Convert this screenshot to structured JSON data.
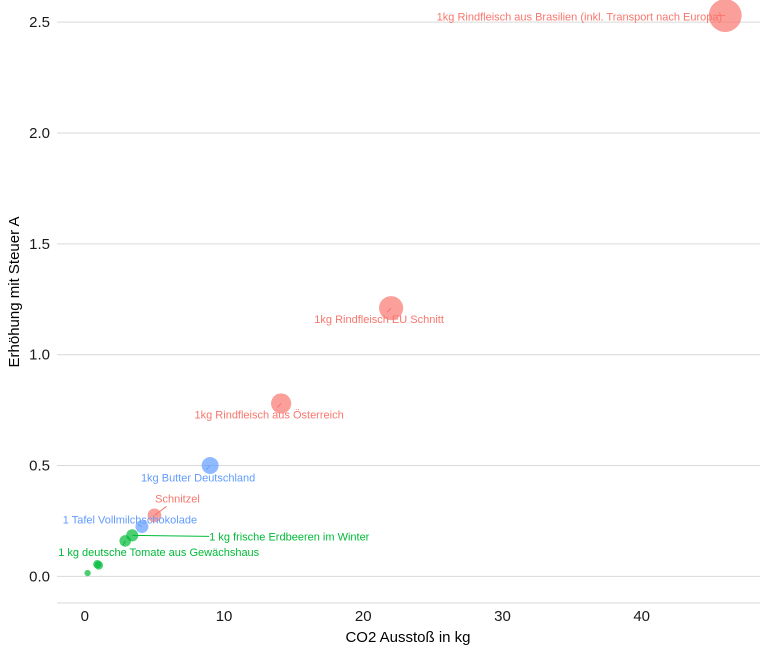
{
  "chart_data": {
    "type": "scatter",
    "xlabel": "CO2 Ausstoß in kg",
    "ylabel": "Erhöhung mit Steuer A",
    "xlim": [
      -2,
      48.5
    ],
    "ylim": [
      -0.12,
      2.6
    ],
    "xticks": [
      "0",
      "10",
      "20",
      "30",
      "40"
    ],
    "yticks": [
      "0.0",
      "0.5",
      "1.0",
      "1.5",
      "2.0",
      "2.5"
    ],
    "grid": "horizontal",
    "colors": {
      "red": "#f8766d",
      "blue": "#619cff",
      "green": "#00ba38",
      "grid": "#d9d9d9"
    },
    "points": [
      {
        "x": 46.0,
        "y": 2.53,
        "size": 46.0,
        "group": "red",
        "label": "1kg Rindfleisch aus Brasilien (inkl. Transport nach Europa)"
      },
      {
        "x": 22.0,
        "y": 1.21,
        "size": 22.0,
        "group": "red",
        "label": "1kg Rindfleisch EU Schnitt"
      },
      {
        "x": 14.1,
        "y": 0.78,
        "size": 14.1,
        "group": "red",
        "label": "1kg Rindfleisch aus Österreich"
      },
      {
        "x": 5.0,
        "y": 0.275,
        "size": 5.0,
        "group": "red",
        "label": "Schnitzel"
      },
      {
        "x": 9.0,
        "y": 0.5,
        "size": 9.0,
        "group": "blue",
        "label": "1kg Butter Deutschland"
      },
      {
        "x": 4.1,
        "y": 0.225,
        "size": 4.1,
        "group": "blue",
        "label": "1 Tafel Vollmilchschokolade"
      },
      {
        "x": 3.4,
        "y": 0.185,
        "size": 3.4,
        "group": "green",
        "label": "1 kg frische Erdbeeren im Winter"
      },
      {
        "x": 2.9,
        "y": 0.16,
        "size": 2.9,
        "group": "green",
        "label": "1 kg deutsche Tomate aus Gewächshaus"
      },
      {
        "x": 0.9,
        "y": 0.055,
        "size": 0.9,
        "group": "green",
        "label": ""
      },
      {
        "x": 1.0,
        "y": 0.05,
        "size": 1.0,
        "group": "green",
        "label": ""
      },
      {
        "x": 0.2,
        "y": 0.015,
        "size": 0.2,
        "group": "green",
        "label": ""
      }
    ]
  }
}
